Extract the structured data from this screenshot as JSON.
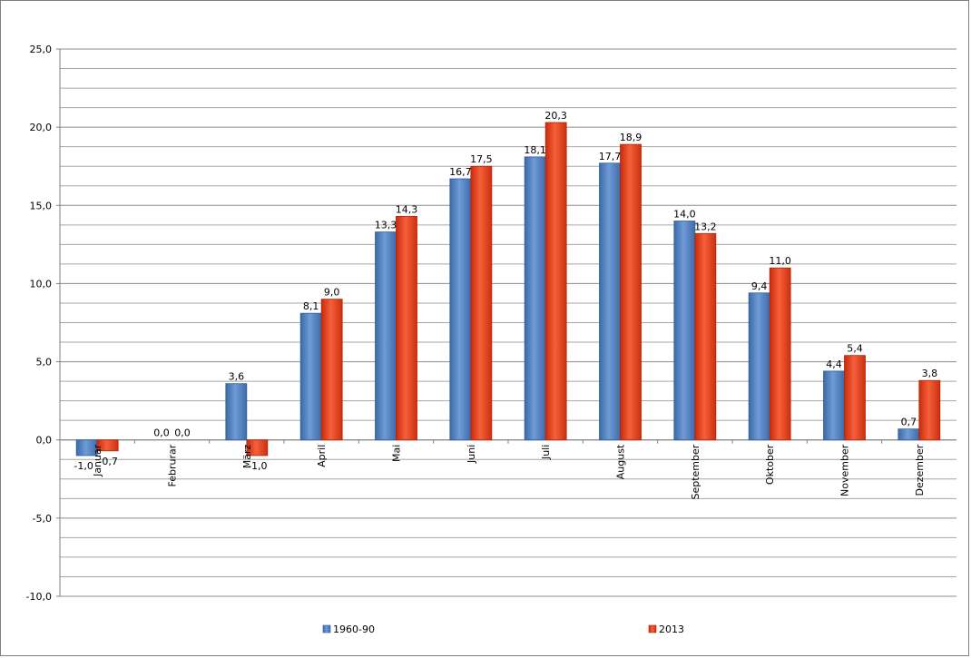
{
  "chart_data": {
    "type": "bar",
    "categories": [
      "Januar",
      "Februrar",
      "März",
      "April",
      "Mai",
      "Juni",
      "Juli",
      "August",
      "September",
      "Oktober",
      "November",
      "Dezember"
    ],
    "series": [
      {
        "name": "1960-90",
        "values": [
          -1.0,
          0.0,
          3.6,
          8.1,
          13.3,
          16.7,
          18.1,
          17.7,
          14.0,
          9.4,
          4.4,
          0.7
        ],
        "labels": [
          "-1,0",
          "0,0",
          "3,6",
          "8,1",
          "13,3",
          "16,7",
          "18,1",
          "17,7",
          "14,0",
          "9,4",
          "4,4",
          "0,7"
        ],
        "color": "#4f81bd"
      },
      {
        "name": "2013",
        "values": [
          -0.7,
          0.0,
          -1.0,
          9.0,
          14.3,
          17.5,
          20.3,
          18.9,
          13.2,
          11.0,
          5.4,
          3.8
        ],
        "labels": [
          "-0,7",
          "0,0",
          "-1,0",
          "9,0",
          "14,3",
          "17,5",
          "20,3",
          "18,9",
          "13,2",
          "11,0",
          "5,4",
          "3,8"
        ],
        "color": "#e8401c"
      }
    ],
    "ylim": [
      -10,
      25
    ],
    "yticks": [
      25,
      20,
      15,
      10,
      5,
      0,
      -5,
      -10
    ],
    "ytick_labels": [
      "25,0",
      "20,0",
      "15,0",
      "10,0",
      "5,0",
      "0,0",
      "-5,0",
      "-10,0"
    ],
    "minor_grid_step": 1.25,
    "grid": true,
    "legend_position": "bottom"
  }
}
